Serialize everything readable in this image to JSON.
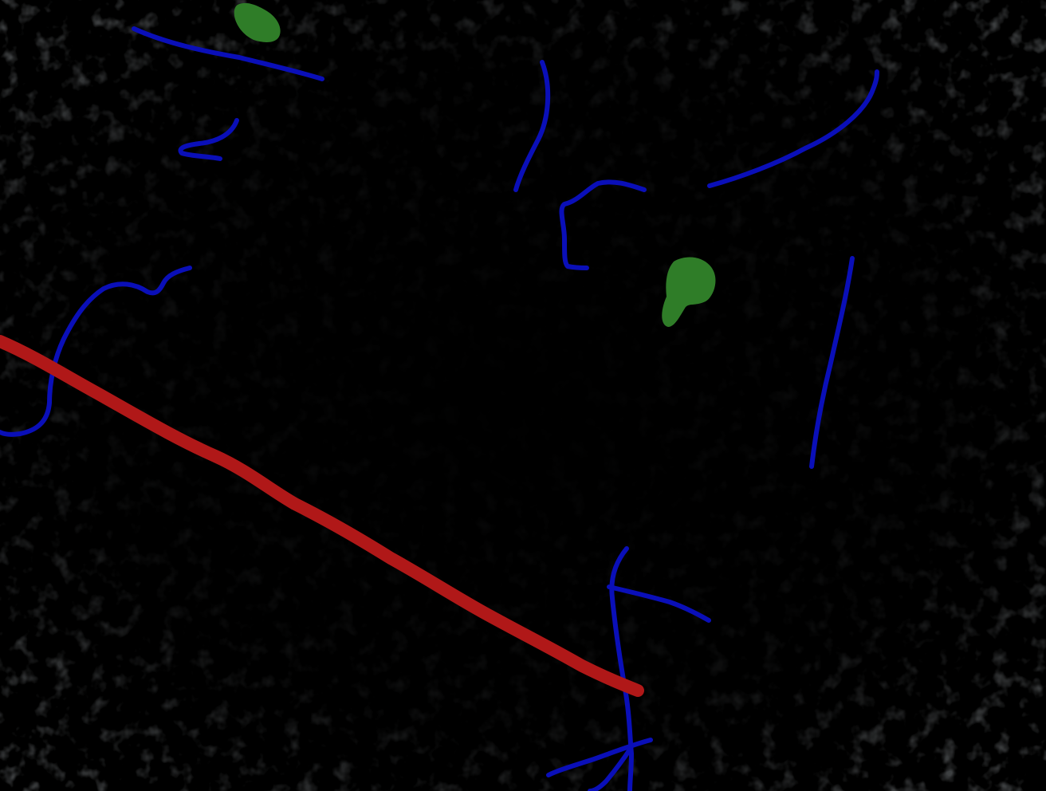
{
  "image": {
    "background_color": "#000000",
    "texture_color": "#5f676c",
    "overlay_classes": [
      {
        "name": "blue-segmentation-annotation",
        "color": "#0a0fb8",
        "count": 14
      },
      {
        "name": "red-segmentation-annotation",
        "color": "#b01818",
        "count": 1
      },
      {
        "name": "green-segmentation-annotation",
        "color": "#2f7d28",
        "count": 2
      }
    ]
  }
}
